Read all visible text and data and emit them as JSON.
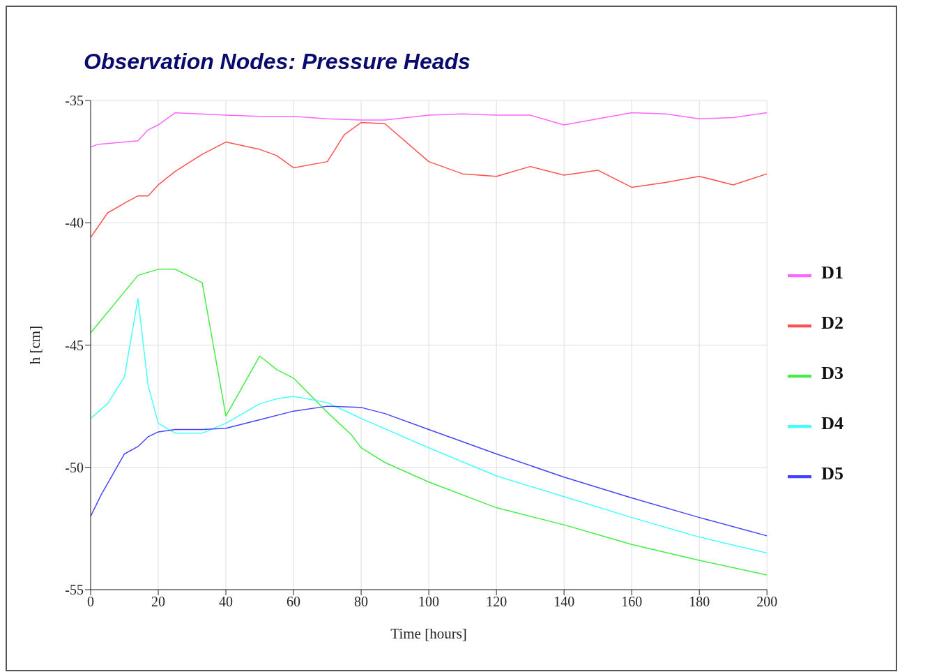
{
  "chart_data": {
    "type": "line",
    "title": "Observation Nodes: Pressure Heads",
    "xlabel": "Time [hours]",
    "ylabel": "h [cm]",
    "xlim": [
      0,
      200
    ],
    "xticks": [
      0,
      20,
      40,
      60,
      80,
      100,
      120,
      140,
      160,
      180,
      200
    ],
    "ylim": [
      -55,
      -35
    ],
    "yticks": [
      -55,
      -50,
      -45,
      -40,
      -35
    ],
    "grid": true,
    "legend": "right",
    "series": [
      {
        "name": "D1",
        "color": "#ff66ff",
        "x": [
          0,
          2,
          10,
          14,
          17,
          20,
          25,
          40,
          50,
          60,
          70,
          80,
          87,
          100,
          110,
          120,
          130,
          140,
          150,
          160,
          170,
          180,
          190,
          200
        ],
        "values": [
          -36.9,
          -36.8,
          -36.7,
          -36.65,
          -36.2,
          -36.0,
          -35.5,
          -35.6,
          -35.65,
          -35.65,
          -35.75,
          -35.8,
          -35.8,
          -35.6,
          -35.55,
          -35.6,
          -35.6,
          -36.0,
          -35.75,
          -35.5,
          -35.55,
          -35.75,
          -35.7,
          -35.5
        ]
      },
      {
        "name": "D2",
        "color": "#ff5050",
        "x": [
          0,
          5,
          10,
          14,
          17,
          20,
          25,
          33,
          40,
          50,
          55,
          60,
          70,
          75,
          80,
          87,
          100,
          110,
          120,
          130,
          140,
          150,
          160,
          170,
          180,
          190,
          200
        ],
        "values": [
          -40.6,
          -39.6,
          -39.2,
          -38.9,
          -38.9,
          -38.45,
          -37.9,
          -37.2,
          -36.7,
          -37.0,
          -37.25,
          -37.75,
          -37.5,
          -36.4,
          -35.9,
          -35.95,
          -37.5,
          -38.0,
          -38.1,
          -37.7,
          -38.05,
          -37.85,
          -38.55,
          -38.35,
          -38.1,
          -38.45,
          -38.0
        ]
      },
      {
        "name": "D3",
        "color": "#44ee44",
        "x": [
          0,
          14,
          20,
          25,
          33,
          40,
          50,
          55,
          60,
          70,
          77,
          80,
          87,
          100,
          120,
          140,
          160,
          180,
          200
        ],
        "values": [
          -44.5,
          -42.15,
          -41.9,
          -41.9,
          -42.45,
          -47.9,
          -45.45,
          -46.0,
          -46.35,
          -47.75,
          -48.65,
          -49.2,
          -49.8,
          -50.6,
          -51.65,
          -52.35,
          -53.15,
          -53.8,
          -54.4
        ]
      },
      {
        "name": "D4",
        "color": "#44ffff",
        "x": [
          0,
          5,
          10,
          14,
          17,
          20,
          25,
          33,
          40,
          50,
          55,
          60,
          70,
          80,
          100,
          120,
          140,
          160,
          180,
          200
        ],
        "values": [
          -48.0,
          -47.4,
          -46.3,
          -43.1,
          -46.65,
          -48.2,
          -48.6,
          -48.6,
          -48.2,
          -47.4,
          -47.2,
          -47.1,
          -47.35,
          -48.0,
          -49.2,
          -50.35,
          -51.2,
          -52.05,
          -52.85,
          -53.5
        ]
      },
      {
        "name": "D5",
        "color": "#4444ff",
        "x": [
          0,
          3,
          10,
          14,
          17,
          20,
          25,
          33,
          40,
          50,
          60,
          70,
          80,
          87,
          100,
          120,
          140,
          160,
          180,
          200
        ],
        "values": [
          -52.0,
          -51.15,
          -49.45,
          -49.15,
          -48.75,
          -48.55,
          -48.45,
          -48.45,
          -48.4,
          -48.05,
          -47.7,
          -47.5,
          -47.55,
          -47.8,
          -48.45,
          -49.45,
          -50.4,
          -51.25,
          -52.05,
          -52.8
        ]
      }
    ]
  }
}
